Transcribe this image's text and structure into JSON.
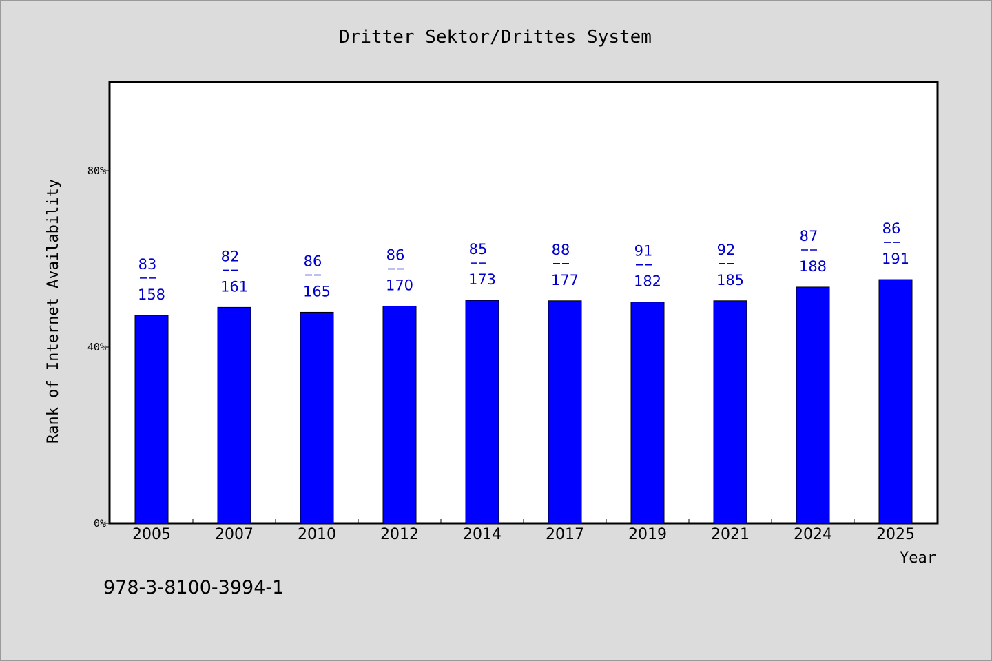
{
  "chart_data": {
    "type": "bar",
    "title": "Dritter Sektor/Drittes System",
    "xlabel": "Year",
    "ylabel": "Rank of Internet Availability",
    "categories": [
      "2005",
      "2007",
      "2010",
      "2012",
      "2014",
      "2017",
      "2019",
      "2021",
      "2024",
      "2025"
    ],
    "values": [
      47.2,
      49.0,
      47.9,
      49.3,
      50.6,
      50.5,
      50.2,
      50.5,
      53.6,
      55.3
    ],
    "data_labels": [
      {
        "top": "83",
        "sep": "—",
        "bottom": "158"
      },
      {
        "top": "82",
        "sep": "—",
        "bottom": "161"
      },
      {
        "top": "86",
        "sep": "—",
        "bottom": "165"
      },
      {
        "top": "86",
        "sep": "—",
        "bottom": "170"
      },
      {
        "top": "85",
        "sep": "—",
        "bottom": "173"
      },
      {
        "top": "88",
        "sep": "—",
        "bottom": "177"
      },
      {
        "top": "91",
        "sep": "—",
        "bottom": "182"
      },
      {
        "top": "92",
        "sep": "—",
        "bottom": "185"
      },
      {
        "top": "87",
        "sep": "—",
        "bottom": "188"
      },
      {
        "top": "86",
        "sep": "—",
        "bottom": "191"
      }
    ],
    "yticks": [
      {
        "value": 0,
        "label": "0%"
      },
      {
        "value": 40,
        "label": "40%"
      },
      {
        "value": 80,
        "label": "80%"
      }
    ],
    "ylim": [
      0,
      100
    ],
    "grid": false,
    "bar_color": "#0000ff",
    "label_color": "#0000cc"
  },
  "footer_text": "978-3-8100-3994-1"
}
